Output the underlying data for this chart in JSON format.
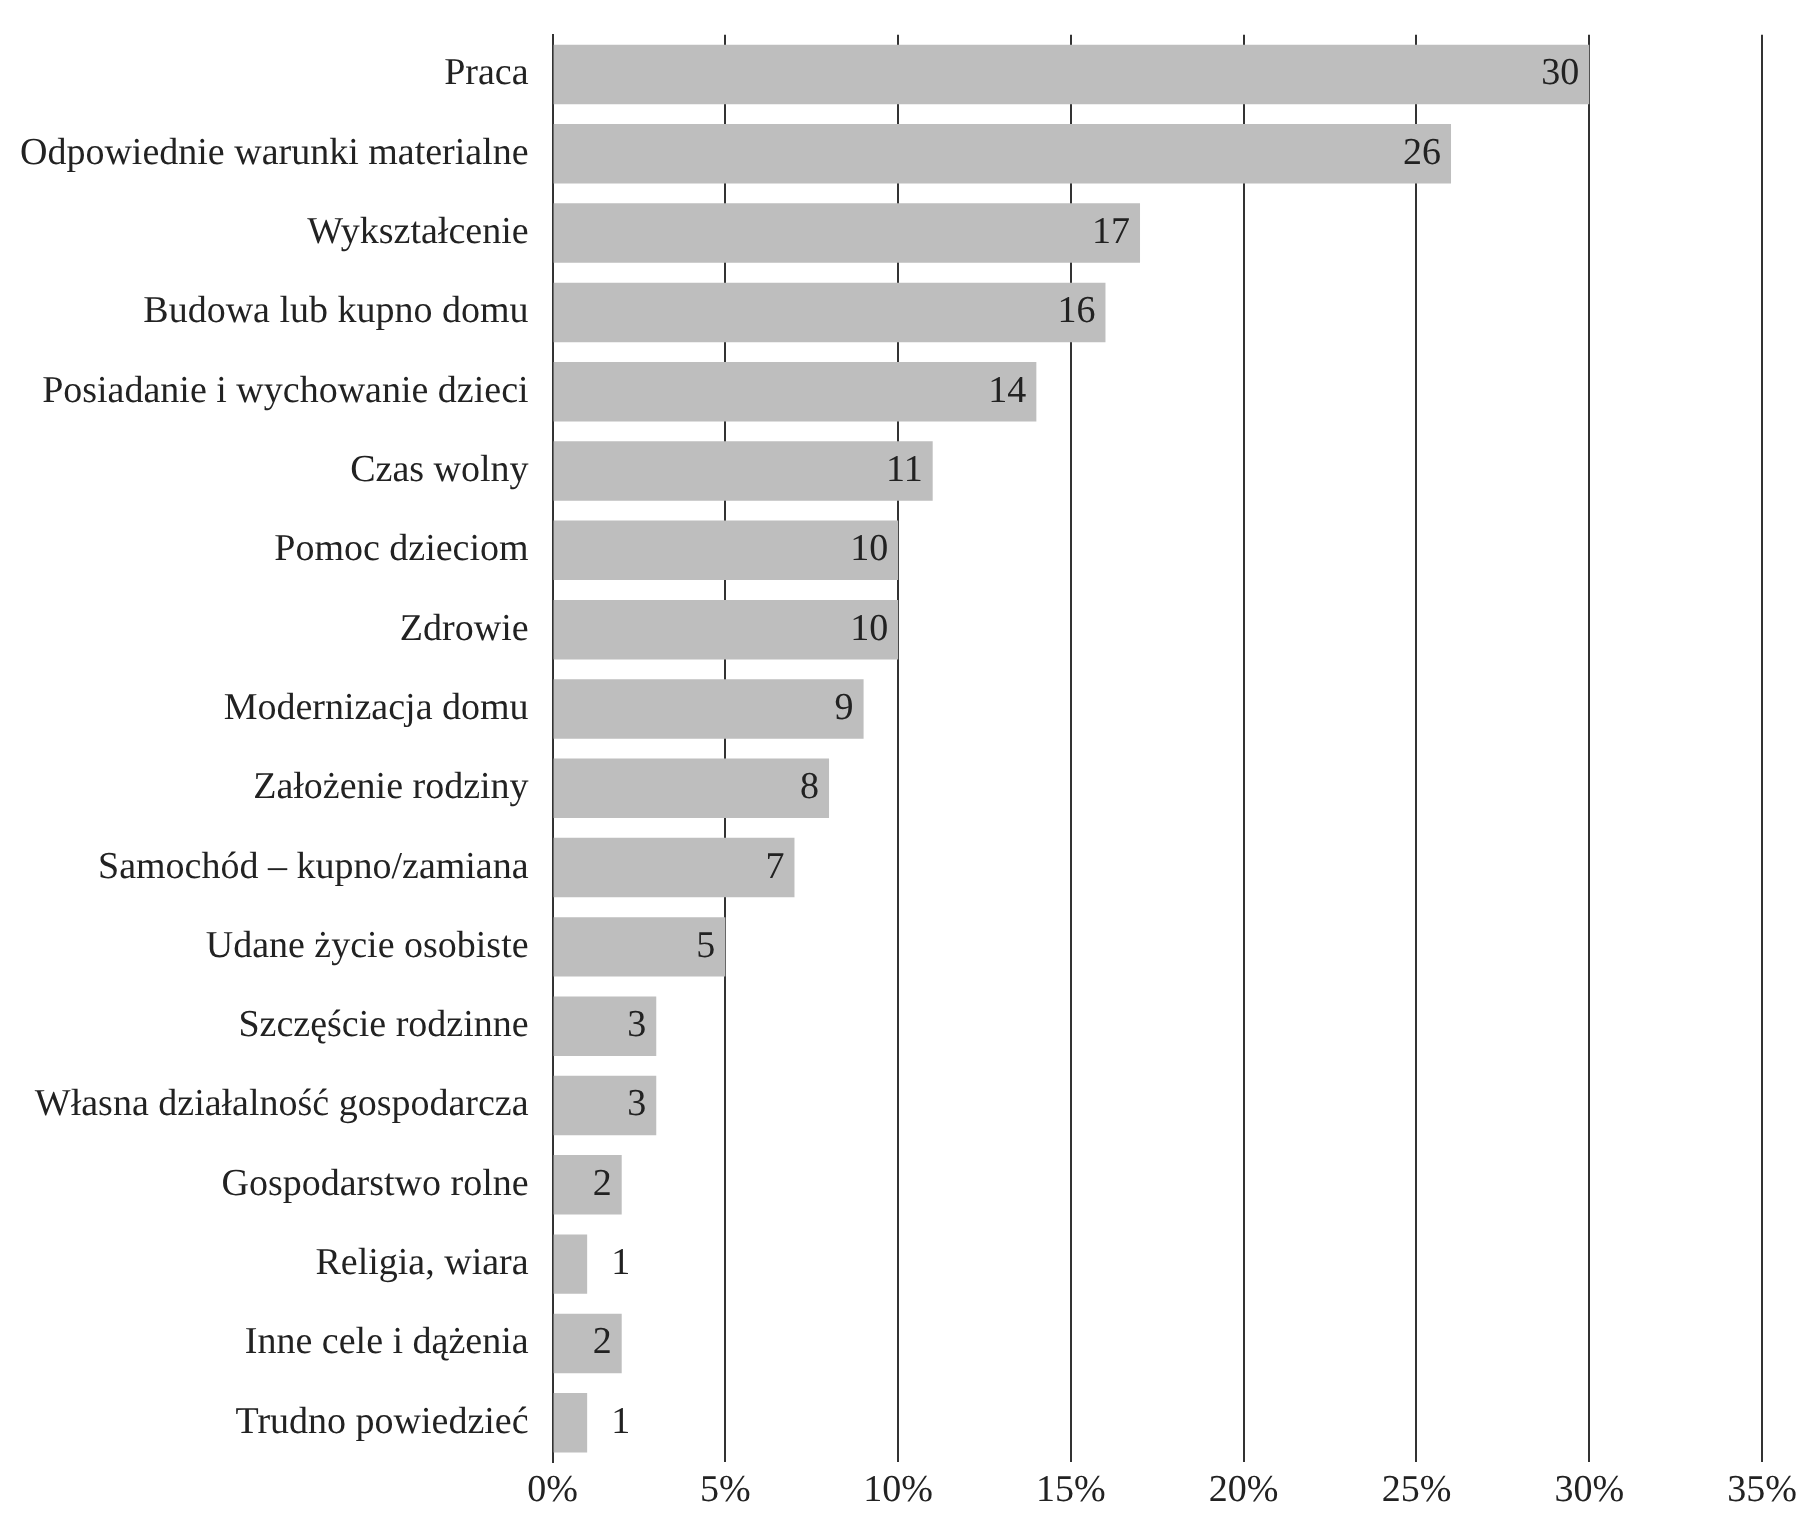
{
  "chart_data": {
    "type": "bar",
    "orientation": "horizontal",
    "categories": [
      "Praca",
      "Odpowiednie warunki materialne",
      "Wykształcenie",
      "Budowa lub kupno domu",
      "Posiadanie i wychowanie dzieci",
      "Czas wolny",
      "Pomoc dzieciom",
      "Zdrowie",
      "Modernizacja domu",
      "Założenie rodziny",
      "Samochód – kupno/zamiana",
      "Udane życie osobiste",
      "Szczęście rodzinne",
      "Własna działalność gospodarcza",
      "Gospodarstwo rolne",
      "Religia, wiara",
      "Inne cele i dążenia",
      "Trudno powiedzieć"
    ],
    "values": [
      30,
      26,
      17,
      16,
      14,
      11,
      10,
      10,
      9,
      8,
      7,
      5,
      3,
      3,
      2,
      1,
      2,
      1
    ],
    "color": "#bebebe",
    "xlim": [
      0,
      35
    ],
    "xticks": [
      {
        "value": 0,
        "label": "0%"
      },
      {
        "value": 5,
        "label": "5%"
      },
      {
        "value": 10,
        "label": "10%"
      },
      {
        "value": 15,
        "label": "15%"
      },
      {
        "value": 20,
        "label": "20%"
      },
      {
        "value": 25,
        "label": "25%"
      },
      {
        "value": 30,
        "label": "30%"
      },
      {
        "value": 35,
        "label": "35%"
      }
    ],
    "grid": "x",
    "data_labels": true,
    "legend": false
  }
}
